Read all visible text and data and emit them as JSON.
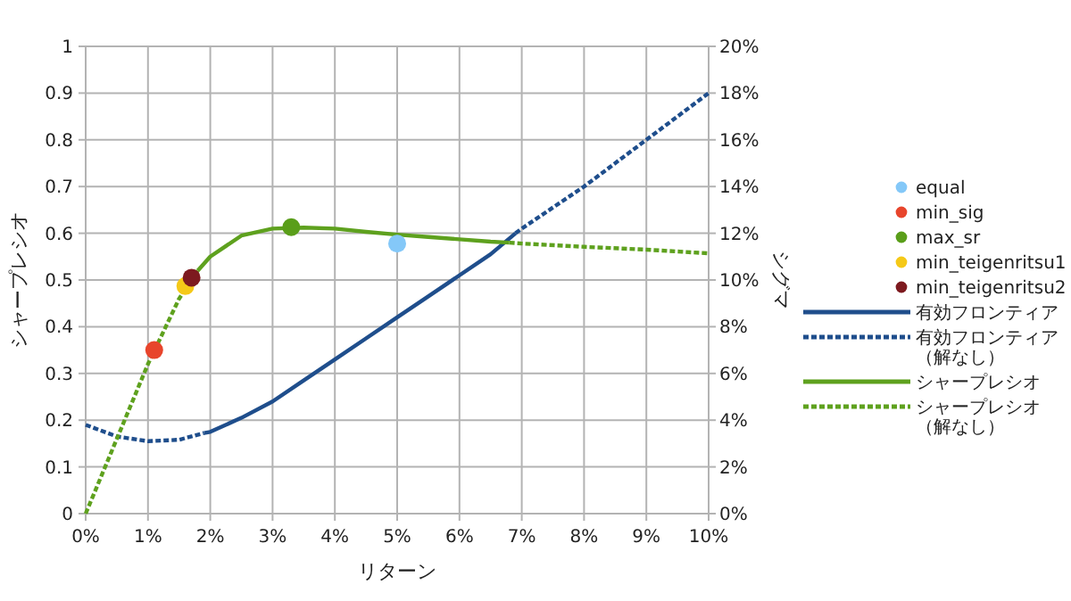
{
  "chart_data": {
    "type": "line",
    "xlabel": "リターン",
    "ylabel": "シャープレシオ",
    "y2label": "シグマ",
    "grid": true,
    "legend": "right",
    "xlim": [
      0,
      10
    ],
    "xticks": [
      {
        "value": 0,
        "label": "0%"
      },
      {
        "value": 1,
        "label": "1%"
      },
      {
        "value": 2,
        "label": "2%"
      },
      {
        "value": 3,
        "label": "3%"
      },
      {
        "value": 4,
        "label": "4%"
      },
      {
        "value": 5,
        "label": "5%"
      },
      {
        "value": 6,
        "label": "6%"
      },
      {
        "value": 7,
        "label": "7%"
      },
      {
        "value": 8,
        "label": "8%"
      },
      {
        "value": 9,
        "label": "9%"
      },
      {
        "value": 10,
        "label": "10%"
      }
    ],
    "ylim": [
      0,
      1
    ],
    "yticks": [
      0,
      0.1,
      0.2,
      0.3,
      0.4,
      0.5,
      0.6,
      0.7,
      0.8,
      0.9,
      1
    ],
    "y2lim": [
      0,
      20
    ],
    "y2ticks": [
      {
        "value": 0,
        "label": "0%"
      },
      {
        "value": 2,
        "label": "2%"
      },
      {
        "value": 4,
        "label": "4%"
      },
      {
        "value": 6,
        "label": "6%"
      },
      {
        "value": 8,
        "label": "8%"
      },
      {
        "value": 10,
        "label": "10%"
      },
      {
        "value": 12,
        "label": "12%"
      },
      {
        "value": 14,
        "label": "14%"
      },
      {
        "value": 16,
        "label": "16%"
      },
      {
        "value": 18,
        "label": "18%"
      },
      {
        "value": 20,
        "label": "20%"
      }
    ],
    "series": [
      {
        "name": "equal",
        "type": "scatter",
        "marker": "circle",
        "color": "#84c8f8",
        "x": [
          5.0
        ],
        "values": [
          0.578
        ]
      },
      {
        "name": "min_sig",
        "type": "scatter",
        "marker": "circle",
        "color": "#e8452c",
        "x": [
          1.1
        ],
        "values": [
          0.35
        ]
      },
      {
        "name": "max_sr",
        "type": "scatter",
        "marker": "circle",
        "color": "#5a9e1a",
        "x": [
          3.3
        ],
        "values": [
          0.613
        ]
      },
      {
        "name": "min_teigenritsu1",
        "type": "scatter",
        "marker": "circle",
        "color": "#f5c918",
        "x": [
          1.6
        ],
        "values": [
          0.487
        ]
      },
      {
        "name": "min_teigenritsu2",
        "type": "scatter",
        "marker": "circle",
        "color": "#7d1a1f",
        "x": [
          1.7
        ],
        "values": [
          0.505
        ]
      },
      {
        "name": "有効フロンティア",
        "type": "line",
        "axis": "y2",
        "line_style": "solid",
        "color": "#1f4e8c",
        "x": [
          1.9,
          2.0,
          2.5,
          3.0,
          3.5,
          4.0,
          4.5,
          5.0,
          5.5,
          6.0,
          6.5,
          6.9
        ],
        "values": [
          3.45,
          3.5,
          4.1,
          4.8,
          5.7,
          6.6,
          7.5,
          8.4,
          9.3,
          10.2,
          11.1,
          12.0
        ]
      },
      {
        "name": "有効フロンティア（解なし）",
        "type": "line",
        "axis": "y2",
        "line_style": "dashed",
        "color": "#1f4e8c",
        "x": [
          0,
          0.5,
          1.0,
          1.5,
          1.9,
          null,
          6.9,
          7.0,
          8.0,
          9.0,
          10
        ],
        "values": [
          3.8,
          3.3,
          3.1,
          3.16,
          3.45,
          null,
          12.0,
          12.2,
          14,
          16,
          18
        ]
      },
      {
        "name": "シャープレシオ",
        "type": "line",
        "line_style": "solid",
        "color": "#5ea11e",
        "x": [
          1.8,
          2.0,
          2.5,
          3.0,
          3.5,
          4.0,
          4.5,
          5.0,
          5.5,
          6.0,
          6.5,
          6.8
        ],
        "values": [
          0.52,
          0.55,
          0.595,
          0.61,
          0.612,
          0.61,
          0.603,
          0.597,
          0.592,
          0.587,
          0.582,
          0.58
        ]
      },
      {
        "name": "シャープレシオ（解なし）",
        "type": "line",
        "line_style": "dashed",
        "color": "#5ea11e",
        "x": [
          0,
          0.5,
          1.0,
          1.5,
          1.8,
          null,
          6.8,
          7.0,
          8.0,
          9.0,
          10
        ],
        "values": [
          0,
          0.16,
          0.32,
          0.46,
          0.52,
          null,
          0.58,
          0.578,
          0.571,
          0.565,
          0.557
        ]
      }
    ]
  }
}
